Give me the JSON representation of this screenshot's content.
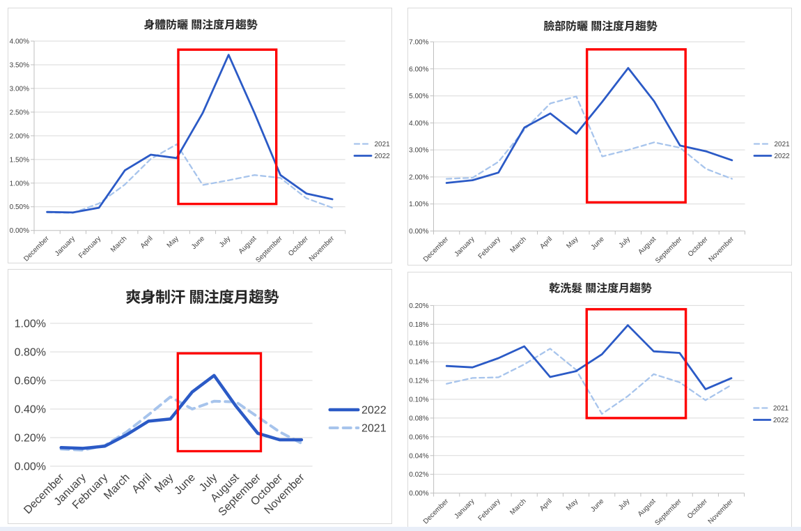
{
  "page": {
    "background": "#ffffff",
    "bottom_strip_color": "#e9eef8",
    "panel_border_color": "#d9d9d9"
  },
  "chart_data": [
    {
      "type": "line",
      "title": "身體防曬 關注度月趨勢",
      "categories": [
        "December",
        "January",
        "February",
        "March",
        "April",
        "May",
        "June",
        "July",
        "August",
        "September",
        "October",
        "November"
      ],
      "values_unit": "percent",
      "series": [
        {
          "name": "2021",
          "style": "dashed",
          "color": "#a7c4ec",
          "values": [
            0.38,
            0.37,
            0.57,
            0.97,
            1.51,
            1.82,
            0.96,
            1.06,
            1.17,
            1.11,
            0.68,
            0.48
          ]
        },
        {
          "name": "2022",
          "style": "solid",
          "color": "#2b5ac6",
          "values": [
            0.39,
            0.38,
            0.48,
            1.27,
            1.6,
            1.53,
            2.48,
            3.71,
            2.48,
            1.17,
            0.78,
            0.66
          ]
        }
      ],
      "y_axis": {
        "min": 0,
        "max": 4,
        "step": 0.5,
        "tick_format": "0.00%"
      },
      "x_axis": {
        "label_rotation": -45
      },
      "grid": true,
      "axis_lines": true,
      "legend": {
        "position": "right",
        "order": [
          "2021",
          "2022"
        ]
      },
      "highlight_box": {
        "color": "#fe0000",
        "x_from_category": 5.06,
        "x_to_category": 8.84,
        "y_from": 0.56,
        "y_to": 3.82
      }
    },
    {
      "type": "line",
      "title": "臉部防曬 關注度月趨勢",
      "categories": [
        "December",
        "January",
        "February",
        "March",
        "April",
        "May",
        "June",
        "July",
        "August",
        "September",
        "October",
        "November"
      ],
      "values_unit": "percent",
      "series": [
        {
          "name": "2021",
          "style": "dashed",
          "color": "#a7c4ec",
          "values": [
            1.93,
            1.97,
            2.56,
            3.75,
            4.72,
            4.98,
            2.76,
            3.0,
            3.28,
            3.08,
            2.3,
            1.93
          ]
        },
        {
          "name": "2022",
          "style": "solid",
          "color": "#2b5ac6",
          "values": [
            1.78,
            1.88,
            2.16,
            3.83,
            4.35,
            3.6,
            4.78,
            6.03,
            4.8,
            3.16,
            2.95,
            2.62
          ]
        }
      ],
      "y_axis": {
        "min": 0,
        "max": 7,
        "step": 1,
        "tick_format": "0.00%"
      },
      "x_axis": {
        "label_rotation": -45
      },
      "grid": true,
      "axis_lines": true,
      "legend": {
        "position": "right",
        "order": [
          "2021",
          "2022"
        ]
      },
      "highlight_box": {
        "color": "#fe0000",
        "x_from_category": 5.41,
        "x_to_category": 9.21,
        "y_from": 1.06,
        "y_to": 6.72
      }
    },
    {
      "type": "line",
      "title": "爽身制汗 關注度月趨勢",
      "categories": [
        "December",
        "January",
        "February",
        "March",
        "April",
        "May",
        "June",
        "July",
        "August",
        "September",
        "October",
        "November"
      ],
      "values_unit": "percent",
      "series": [
        {
          "name": "2021",
          "style": "dashed",
          "color": "#a7c4ec",
          "values": [
            0.12,
            0.112,
            0.145,
            0.24,
            0.36,
            0.485,
            0.4,
            0.455,
            0.45,
            0.345,
            0.24,
            0.16
          ]
        },
        {
          "name": "2022",
          "style": "solid",
          "color": "#2b5ac6",
          "values": [
            0.13,
            0.125,
            0.14,
            0.22,
            0.315,
            0.33,
            0.52,
            0.635,
            0.42,
            0.23,
            0.185,
            0.185
          ]
        }
      ],
      "y_axis": {
        "min": 0,
        "max": 1,
        "step": 0.2,
        "tick_format": "0.00%"
      },
      "x_axis": {
        "label_rotation": -45
      },
      "grid": true,
      "axis_lines": false,
      "legend": {
        "position": "right",
        "order": [
          "2022",
          "2021"
        ]
      },
      "highlight_box": {
        "color": "#fe0000",
        "x_from_category": 5.34,
        "x_to_category": 9.14,
        "y_from": 0.105,
        "y_to": 0.79
      }
    },
    {
      "type": "line",
      "title": "乾洗髮 關注度月趨勢",
      "categories": [
        "December",
        "January",
        "February",
        "March",
        "April",
        "May",
        "June",
        "July",
        "August",
        "September",
        "October",
        "November"
      ],
      "values_unit": "percent",
      "series": [
        {
          "name": "2021",
          "style": "dashed",
          "color": "#a7c4ec",
          "values": [
            0.1166,
            0.1227,
            0.1234,
            0.1372,
            0.154,
            0.1315,
            0.0844,
            0.1034,
            0.1268,
            0.1181,
            0.099,
            0.1152
          ]
        },
        {
          "name": "2022",
          "style": "solid",
          "color": "#2b5ac6",
          "values": [
            0.1355,
            0.134,
            0.1438,
            0.1565,
            0.1238,
            0.13,
            0.148,
            0.179,
            0.1511,
            0.1494,
            0.1108,
            0.1225
          ]
        }
      ],
      "y_axis": {
        "min": 0,
        "max": 0.2,
        "step": 0.02,
        "tick_format": "0.00%"
      },
      "x_axis": {
        "label_rotation": -45
      },
      "grid": true,
      "axis_lines": true,
      "legend": {
        "position": "right",
        "order": [
          "2021",
          "2022"
        ]
      },
      "highlight_box": {
        "color": "#fe0000",
        "x_from_category": 5.41,
        "x_to_category": 9.24,
        "y_from": 0.08,
        "y_to": 0.196
      }
    }
  ]
}
